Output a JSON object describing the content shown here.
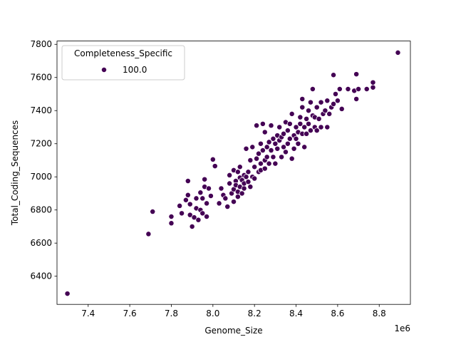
{
  "chart_data": {
    "type": "scatter",
    "title": "",
    "xlabel": "Genome_Size",
    "ylabel": "Total_Coding_Sequences",
    "x_offset_label": "1e6",
    "x_scale": 1000000,
    "xlim": [
      7.25,
      8.95
    ],
    "ylim": [
      6230,
      7820
    ],
    "xticks": [
      7.4,
      7.6,
      7.8,
      8.0,
      8.2,
      8.4,
      8.6,
      8.8
    ],
    "xtick_labels": [
      "7.4",
      "7.6",
      "7.8",
      "8.0",
      "8.2",
      "8.4",
      "8.6",
      "8.8"
    ],
    "yticks": [
      6400,
      6600,
      6800,
      7000,
      7200,
      7400,
      7600,
      7800
    ],
    "ytick_labels": [
      "6400",
      "6600",
      "6800",
      "7000",
      "7200",
      "7400",
      "7600",
      "7800"
    ],
    "grid": false,
    "legend": {
      "title": "Completeness_Specific",
      "placement": "top-left",
      "entries": [
        {
          "label": "100.0",
          "color": "#440154"
        }
      ]
    },
    "series": [
      {
        "name": "100.0",
        "color": "#440154",
        "points": [
          [
            7.3,
            6295
          ],
          [
            7.69,
            6655
          ],
          [
            7.71,
            6790
          ],
          [
            7.8,
            6760
          ],
          [
            7.8,
            6720
          ],
          [
            7.84,
            6825
          ],
          [
            7.85,
            6780
          ],
          [
            7.87,
            6860
          ],
          [
            7.88,
            6975
          ],
          [
            7.88,
            6890
          ],
          [
            7.89,
            6835
          ],
          [
            7.89,
            6770
          ],
          [
            7.9,
            6700
          ],
          [
            7.91,
            6755
          ],
          [
            7.92,
            6870
          ],
          [
            7.92,
            6810
          ],
          [
            7.93,
            6740
          ],
          [
            7.94,
            6905
          ],
          [
            7.94,
            6800
          ],
          [
            7.95,
            6870
          ],
          [
            7.95,
            6780
          ],
          [
            7.96,
            6940
          ],
          [
            7.96,
            6985
          ],
          [
            7.97,
            6840
          ],
          [
            7.97,
            6760
          ],
          [
            7.98,
            6930
          ],
          [
            7.99,
            6885
          ],
          [
            8.0,
            7105
          ],
          [
            8.01,
            7065
          ],
          [
            8.03,
            6840
          ],
          [
            8.04,
            6930
          ],
          [
            8.05,
            6890
          ],
          [
            8.06,
            6870
          ],
          [
            8.07,
            6820
          ],
          [
            8.08,
            6960
          ],
          [
            8.08,
            7010
          ],
          [
            8.09,
            6900
          ],
          [
            8.1,
            6850
          ],
          [
            8.1,
            6925
          ],
          [
            8.1,
            7040
          ],
          [
            8.11,
            6975
          ],
          [
            8.11,
            6950
          ],
          [
            8.12,
            6880
          ],
          [
            8.12,
            6910
          ],
          [
            8.12,
            7030
          ],
          [
            8.13,
            6995
          ],
          [
            8.13,
            6940
          ],
          [
            8.13,
            7060
          ],
          [
            8.14,
            6900
          ],
          [
            8.14,
            6980
          ],
          [
            8.15,
            7010
          ],
          [
            8.15,
            6930
          ],
          [
            8.15,
            6960
          ],
          [
            8.16,
            7000
          ],
          [
            8.16,
            7170
          ],
          [
            8.17,
            6970
          ],
          [
            8.17,
            7030
          ],
          [
            8.18,
            6940
          ],
          [
            8.18,
            7100
          ],
          [
            8.19,
            7000
          ],
          [
            8.19,
            7180
          ],
          [
            8.2,
            7060
          ],
          [
            8.2,
            6990
          ],
          [
            8.21,
            7110
          ],
          [
            8.21,
            7310
          ],
          [
            8.22,
            7030
          ],
          [
            8.22,
            7140
          ],
          [
            8.23,
            7080
          ],
          [
            8.23,
            7040
          ],
          [
            8.23,
            7200
          ],
          [
            8.24,
            7160
          ],
          [
            8.24,
            7320
          ],
          [
            8.25,
            7100
          ],
          [
            8.25,
            7050
          ],
          [
            8.25,
            7270
          ],
          [
            8.26,
            7180
          ],
          [
            8.26,
            7120
          ],
          [
            8.27,
            7210
          ],
          [
            8.27,
            7080
          ],
          [
            8.28,
            7160
          ],
          [
            8.28,
            7310
          ],
          [
            8.29,
            7230
          ],
          [
            8.29,
            7120
          ],
          [
            8.3,
            7200
          ],
          [
            8.3,
            7080
          ],
          [
            8.31,
            7250
          ],
          [
            8.31,
            7170
          ],
          [
            8.32,
            7220
          ],
          [
            8.32,
            7300
          ],
          [
            8.33,
            7120
          ],
          [
            8.33,
            7240
          ],
          [
            8.34,
            7180
          ],
          [
            8.34,
            7260
          ],
          [
            8.35,
            7150
          ],
          [
            8.35,
            7330
          ],
          [
            8.36,
            7200
          ],
          [
            8.36,
            7280
          ],
          [
            8.37,
            7230
          ],
          [
            8.37,
            7320
          ],
          [
            8.38,
            7110
          ],
          [
            8.38,
            7380
          ],
          [
            8.39,
            7250
          ],
          [
            8.39,
            7170
          ],
          [
            8.4,
            7300
          ],
          [
            8.4,
            7230
          ],
          [
            8.41,
            7200
          ],
          [
            8.41,
            7270
          ],
          [
            8.42,
            7320
          ],
          [
            8.42,
            7360
          ],
          [
            8.43,
            7260
          ],
          [
            8.43,
            7420
          ],
          [
            8.43,
            7470
          ],
          [
            8.44,
            7300
          ],
          [
            8.44,
            7180
          ],
          [
            8.45,
            7350
          ],
          [
            8.45,
            7260
          ],
          [
            8.46,
            7400
          ],
          [
            8.46,
            7320
          ],
          [
            8.47,
            7280
          ],
          [
            8.47,
            7450
          ],
          [
            8.48,
            7370
          ],
          [
            8.48,
            7530
          ],
          [
            8.49,
            7300
          ],
          [
            8.49,
            7360
          ],
          [
            8.5,
            7420
          ],
          [
            8.5,
            7280
          ],
          [
            8.51,
            7350
          ],
          [
            8.52,
            7300
          ],
          [
            8.52,
            7450
          ],
          [
            8.53,
            7380
          ],
          [
            8.54,
            7400
          ],
          [
            8.55,
            7460
          ],
          [
            8.55,
            7300
          ],
          [
            8.56,
            7380
          ],
          [
            8.57,
            7420
          ],
          [
            8.58,
            7615
          ],
          [
            8.58,
            7440
          ],
          [
            8.59,
            7500
          ],
          [
            8.6,
            7460
          ],
          [
            8.61,
            7530
          ],
          [
            8.62,
            7410
          ],
          [
            8.65,
            7530
          ],
          [
            8.68,
            7520
          ],
          [
            8.69,
            7620
          ],
          [
            8.69,
            7470
          ],
          [
            8.7,
            7530
          ],
          [
            8.74,
            7530
          ],
          [
            8.77,
            7540
          ],
          [
            8.77,
            7570
          ],
          [
            8.89,
            7750
          ]
        ]
      }
    ]
  }
}
